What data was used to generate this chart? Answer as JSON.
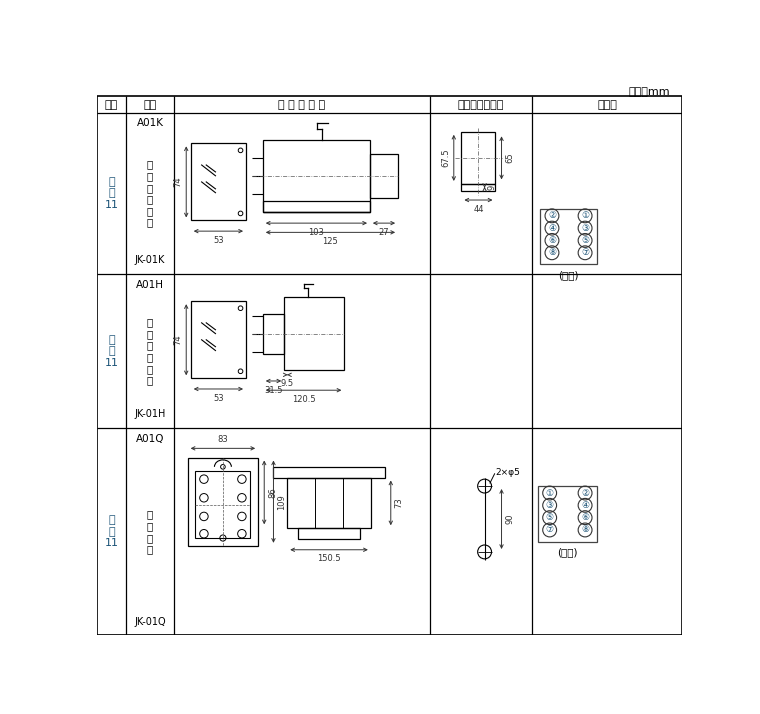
{
  "title_unit": "单位：mm",
  "header_cols": [
    "图号",
    "结构",
    "外 形 尺 寸 图",
    "安装开孔尺寸图",
    "端子图"
  ],
  "bg_color": "#ffffff",
  "line_color": "#000000",
  "blue_color": "#1a5276",
  "dim_color": "#333333",
  "COL": [
    0,
    38,
    100,
    432,
    565,
    760
  ],
  "ROW": [
    14,
    35,
    245,
    445,
    714
  ]
}
